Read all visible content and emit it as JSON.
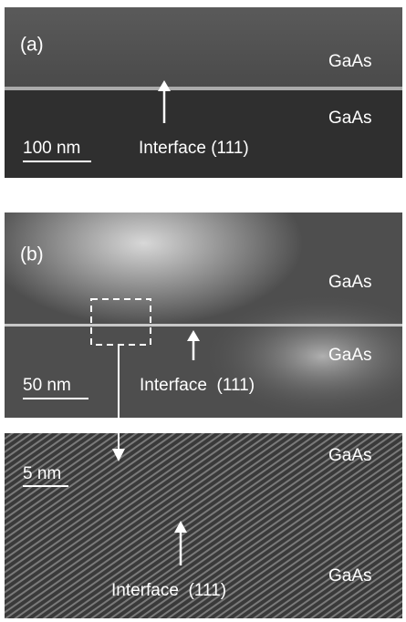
{
  "panels": [
    {
      "label": "(a)",
      "layers": [
        "GaAs",
        "GaAs"
      ],
      "scale_bar": "100 nm",
      "interface": "Interface (111)"
    },
    {
      "label": "(b)",
      "layers": [
        "GaAs",
        "GaAs"
      ],
      "scale_bar": "50 nm",
      "interface": "Interface  (111)"
    },
    {
      "layers": [
        "GaAs",
        "GaAs"
      ],
      "scale_bar": "5 nm",
      "interface": "Interface  (111)"
    }
  ]
}
